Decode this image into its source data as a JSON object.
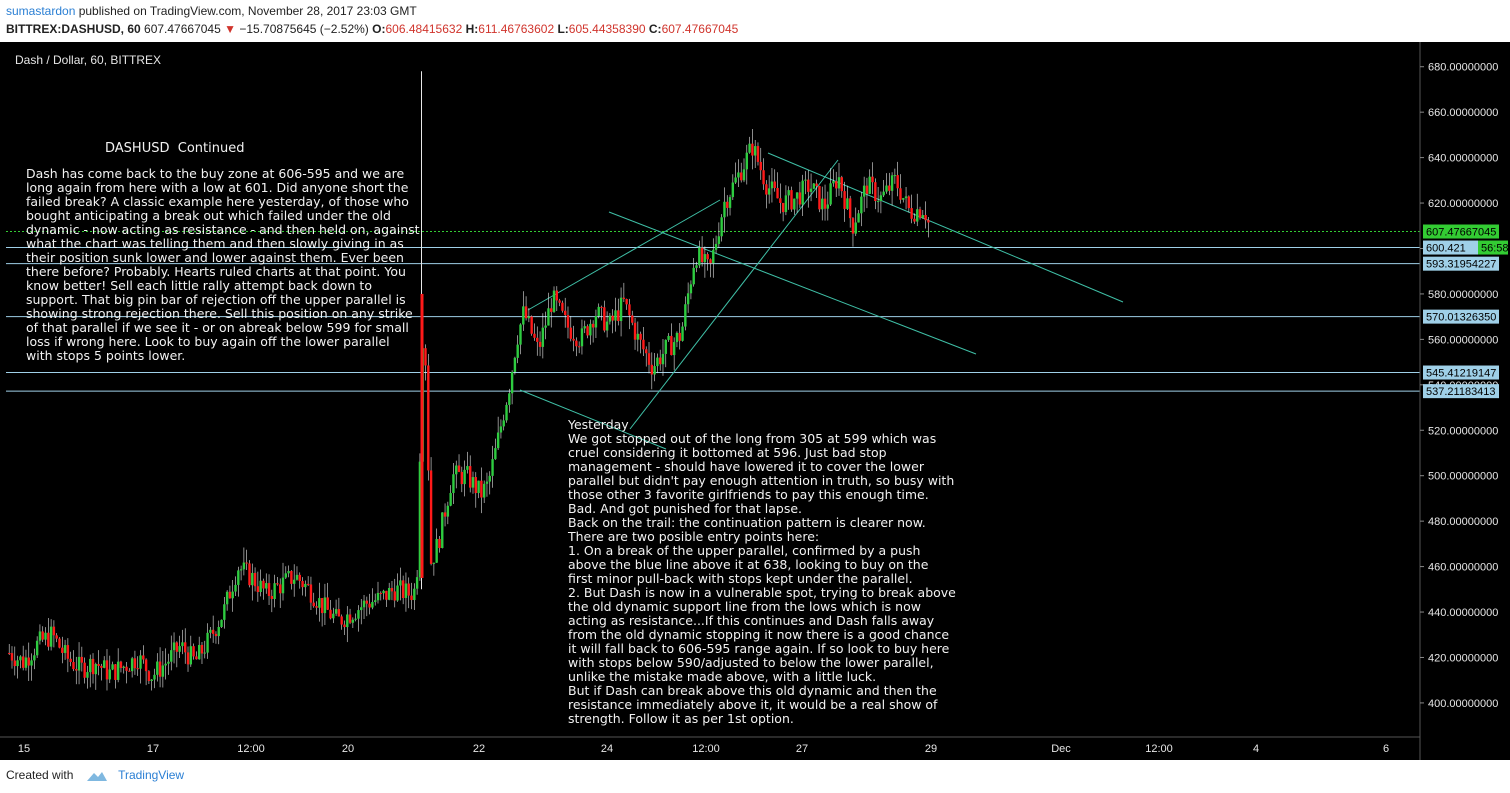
{
  "header": {
    "user": "sumastardon",
    "published": " published on TradingView.com, November 28, 2017 23:03 GMT",
    "symbol": "BITTREX:DASHUSD, 60",
    "last": "607.47667045",
    "change": "−15.70875645 (−2.52%)",
    "o_label": "O:",
    "o": "606.48415632",
    "h_label": "H:",
    "h": "611.46763602",
    "l_label": "L:",
    "l": "605.44358390",
    "c_label": "C:",
    "c": "607.47667045"
  },
  "chart_title": "Dash / Dollar, 60, BITTREX",
  "notes": {
    "left_title": "DASHUSD  Continued",
    "left_body": "Dash has come back to the buy zone at 606-595 and we are\nlong again from here with a low at 601. Did anyone short the\nfailed break? A classic example here yesterday, of those who\nbought anticipating a break out which failed under the old\ndynamic - now acting as resistance - and then held on, against\nwhat the chart was telling them and then slowly giving in as\ntheir position sunk lower and lower against them. Ever been\nthere before? Probably. Hearts ruled charts at that point. You\nknow better! Sell each little rally attempt back down to\nsupport. That big pin bar of rejection off the upper parallel is\nshowing strong rejection there. Sell this position on any strike\nof that parallel if we see it - or on abreak below 599 for small\nloss if wrong here. Look to buy again off the lower parallel\nwith stops 5 points lower.",
    "right_body": "Yesterday\nWe got stopped out of the long from 305 at 599 which was\ncruel considering it bottomed at 596. Just bad stop\nmanagement - should have lowered it to cover the lower\nparallel but didn't pay enough attention in truth, so busy with\nthose other 3 favorite girlfriends to pay this enough time.\nBad. And got punished for that lapse.\nBack on the trail: the continuation pattern is clearer now.\nThere are two posible entry points here:\n1. On a break of the upper parallel, confirmed by a push\nabove the blue line above it at 638, looking to buy on the\nfirst minor pull-back with stops kept under the parallel.\n2. But Dash is now in a vulnerable spot, trying to break above\nthe old dynamic support line from the lows which is now\nacting as resistance...If this continues and Dash falls away\nfrom the old dynamic stopping it now there is a good chance\nit will fall back to 606-595 range again. If so look to buy here\nwith stops below 590/adjusted to below the lower parallel,\nunlike the mistake made above, with a little luck.\nBut if Dash can break above this old dynamic and then the\nresistance immediately above it, it would be a real show of\nstrength. Follow it as per 1st option."
  },
  "footer": {
    "created": "Created with",
    "brand": "TradingView"
  },
  "colors": {
    "bg": "#000000",
    "up": "#2ecc40",
    "down": "#ff1a1a",
    "wick": "#e8e8e8",
    "hline": "#9fd0e8",
    "channel": "#3fbfa6",
    "axis_text": "#e6e6e6",
    "label_bg": "#9fd0e8",
    "last_bg": "#33cc33"
  },
  "chart_data": {
    "type": "candlestick",
    "title": "Dash / Dollar, 60, BITTREX",
    "ylim": [
      385,
      690
    ],
    "y_ticks": [
      400,
      420,
      440,
      460,
      480,
      500,
      520,
      540,
      560,
      580,
      600,
      620,
      640,
      660,
      680
    ],
    "y_tick_labels": [
      "400.00000000",
      "420.00000000",
      "440.00000000",
      "460.00000000",
      "480.00000000",
      "500.00000000",
      "520.00000000",
      "540.00000000",
      "560.00000000",
      "580.00000000",
      "600.00000000",
      "620.00000000",
      "640.00000000",
      "660.00000000",
      "680.00000000"
    ],
    "x_tick_labels": [
      "15",
      "17",
      "12:00",
      "20",
      "22",
      "24",
      "12:00",
      "27",
      "29",
      "Dec",
      "12:00",
      "4",
      "6"
    ],
    "horizontal_levels": [
      {
        "value": 600.421,
        "label": "600.421",
        "timer": "56:58"
      },
      {
        "value": 593.31954227,
        "label": "593.31954227"
      },
      {
        "value": 570.0132635,
        "label": "570.01326350"
      },
      {
        "value": 545.41219147,
        "label": "545.41219147"
      },
      {
        "value": 537.21183413,
        "label": "537.21183413"
      }
    ],
    "last_price": {
      "value": 607.47667045,
      "label": "607.47667045"
    },
    "price_path": [
      [
        0,
        422
      ],
      [
        0.01,
        418
      ],
      [
        0.02,
        426
      ],
      [
        0.03,
        430
      ],
      [
        0.04,
        420
      ],
      [
        0.05,
        415
      ],
      [
        0.06,
        418
      ],
      [
        0.07,
        413
      ],
      [
        0.08,
        416
      ],
      [
        0.09,
        420
      ],
      [
        0.1,
        412
      ],
      [
        0.11,
        418
      ],
      [
        0.12,
        425
      ],
      [
        0.13,
        418
      ],
      [
        0.14,
        428
      ],
      [
        0.15,
        440
      ],
      [
        0.16,
        460
      ],
      [
        0.17,
        455
      ],
      [
        0.18,
        448
      ],
      [
        0.19,
        452
      ],
      [
        0.2,
        456
      ],
      [
        0.21,
        450
      ],
      [
        0.22,
        442
      ],
      [
        0.23,
        436
      ],
      [
        0.24,
        440
      ],
      [
        0.25,
        444
      ],
      [
        0.26,
        446
      ],
      [
        0.27,
        450
      ],
      [
        0.28,
        448
      ],
      [
        0.285,
        450
      ],
      [
        0.29,
        580
      ],
      [
        0.295,
        462
      ],
      [
        0.3,
        470
      ],
      [
        0.31,
        500
      ],
      [
        0.32,
        500
      ],
      [
        0.33,
        492
      ],
      [
        0.335,
        496
      ],
      [
        0.34,
        510
      ],
      [
        0.35,
        540
      ],
      [
        0.355,
        560
      ],
      [
        0.36,
        572
      ],
      [
        0.37,
        555
      ],
      [
        0.38,
        578
      ],
      [
        0.39,
        566
      ],
      [
        0.4,
        560
      ],
      [
        0.41,
        572
      ],
      [
        0.42,
        566
      ],
      [
        0.43,
        576
      ],
      [
        0.44,
        560
      ],
      [
        0.45,
        548
      ],
      [
        0.46,
        556
      ],
      [
        0.47,
        562
      ],
      [
        0.48,
        598
      ],
      [
        0.49,
        590
      ],
      [
        0.5,
        620
      ],
      [
        0.51,
        632
      ],
      [
        0.52,
        645
      ],
      [
        0.53,
        628
      ],
      [
        0.54,
        620
      ],
      [
        0.55,
        622
      ],
      [
        0.56,
        628
      ],
      [
        0.57,
        618
      ],
      [
        0.58,
        632
      ],
      [
        0.59,
        610
      ],
      [
        0.6,
        628
      ],
      [
        0.61,
        622
      ],
      [
        0.62,
        630
      ],
      [
        0.63,
        616
      ],
      [
        0.64,
        618
      ],
      [
        0.645,
        607
      ]
    ],
    "series": [
      {
        "name": "DASHUSD, 60"
      }
    ]
  }
}
